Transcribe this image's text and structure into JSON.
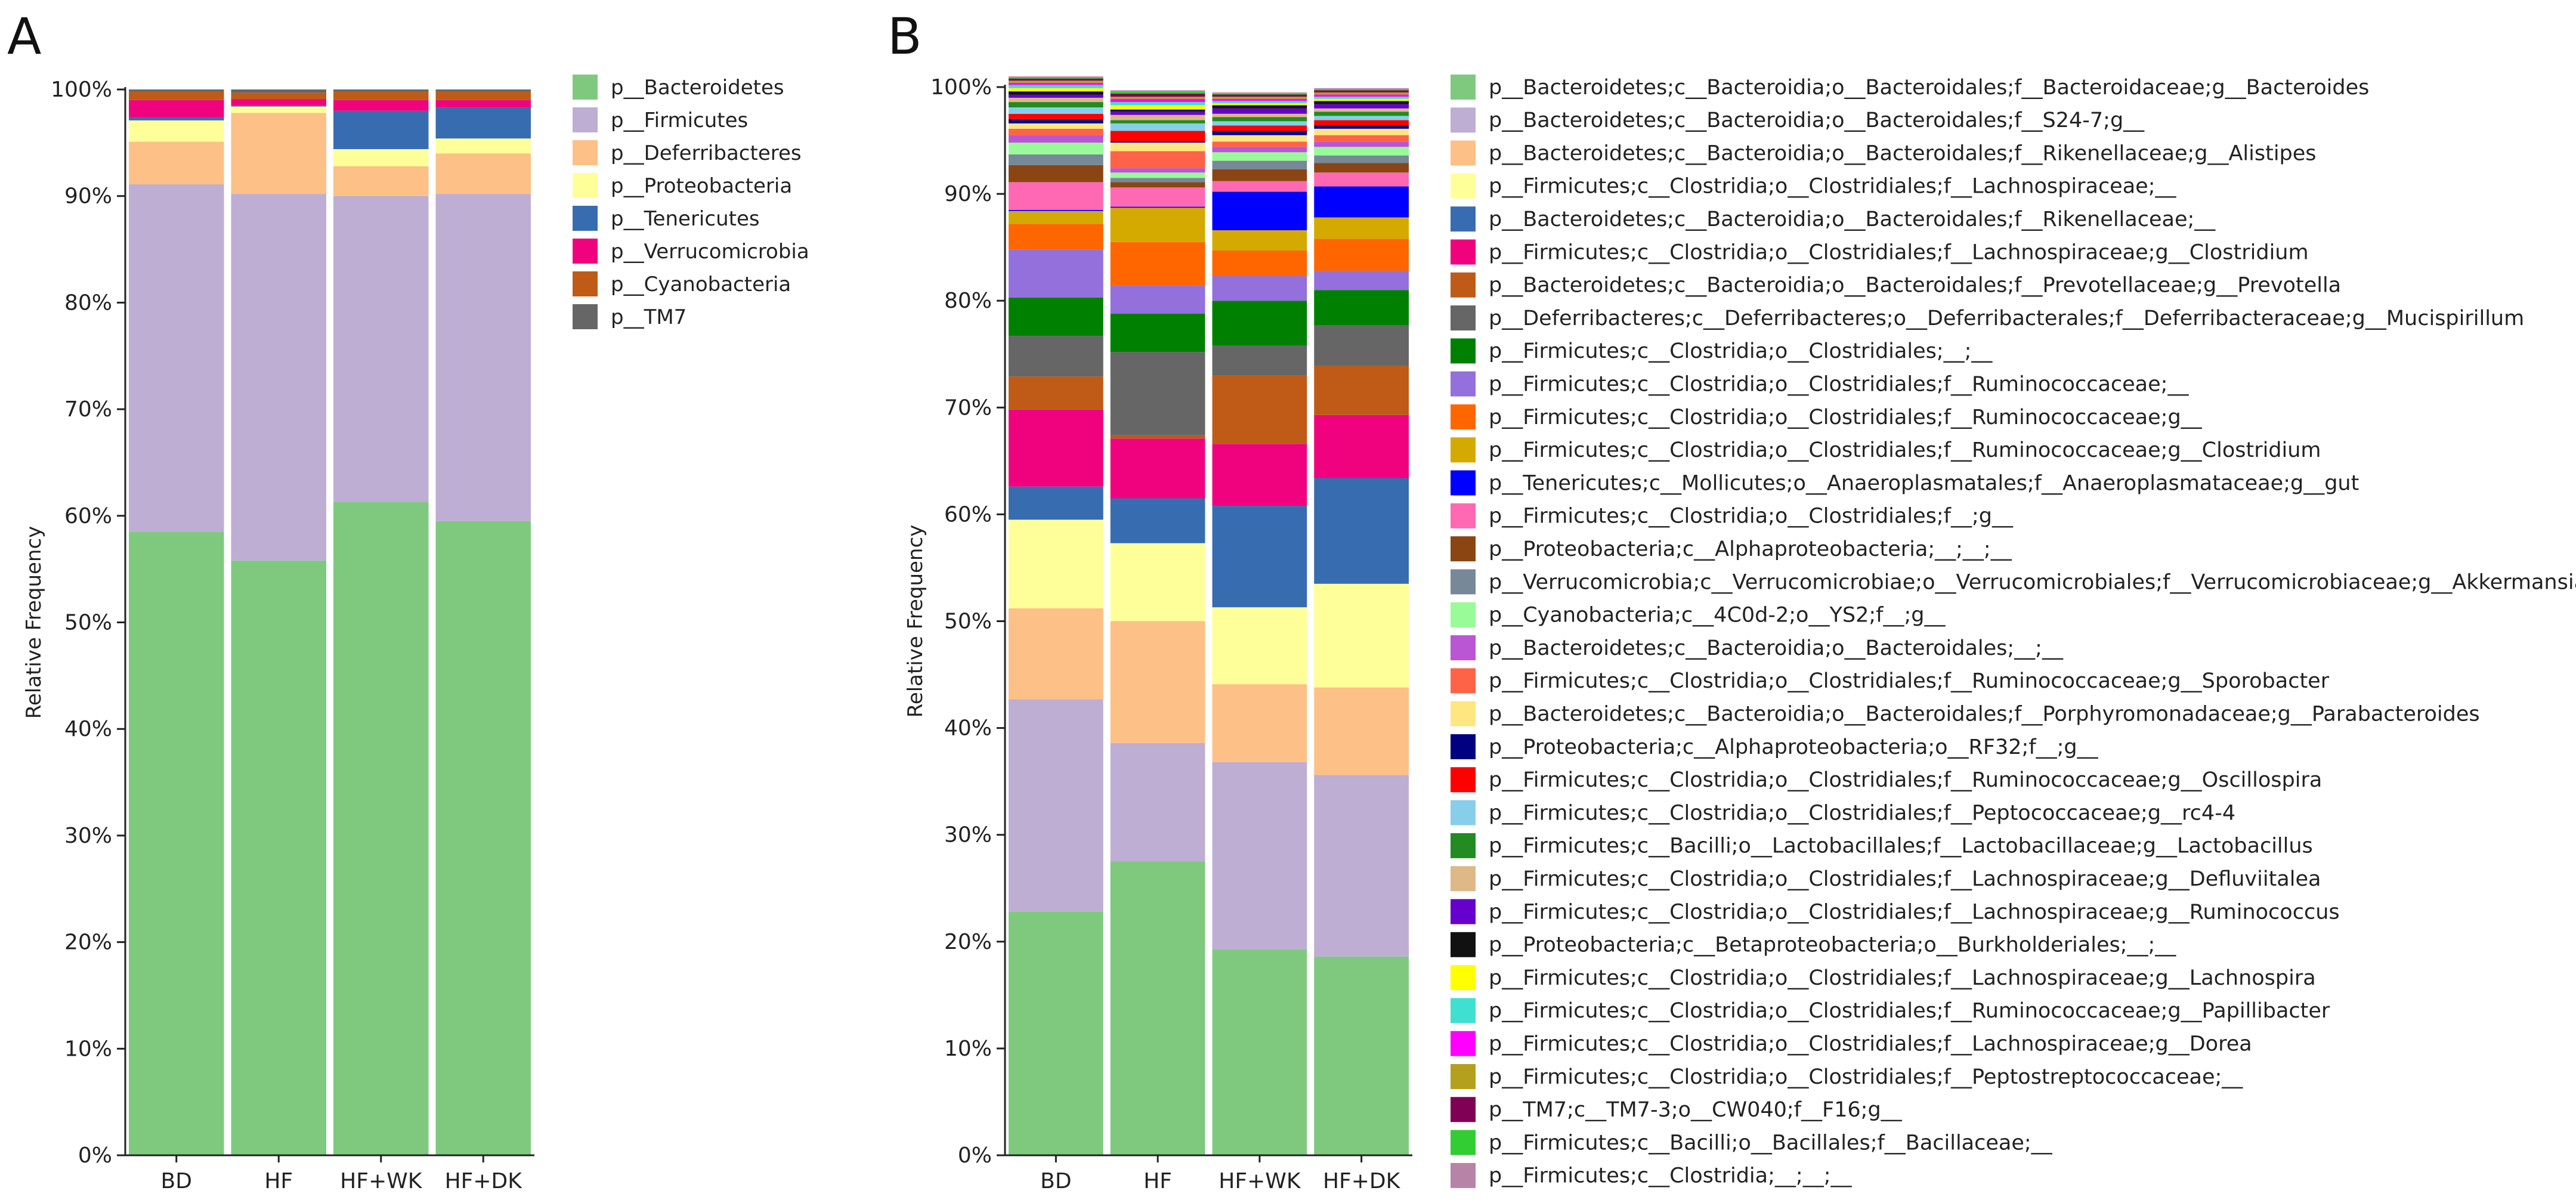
{
  "chart_data": [
    {
      "panel": "A",
      "type": "bar",
      "stacked": true,
      "ylabel": "Relative Frequency",
      "xlabel": "",
      "ylim": [
        0,
        100
      ],
      "y_ticks": [
        "0%",
        "10%",
        "20%",
        "30%",
        "40%",
        "50%",
        "60%",
        "70%",
        "80%",
        "90%",
        "100%"
      ],
      "categories": [
        "BD",
        "HF",
        "HF+WK",
        "HF+DK"
      ],
      "legend_position": "right",
      "series": [
        {
          "name": "p__Bacteroidetes",
          "color": "#7fc97f",
          "values": [
            58.5,
            55.8,
            61.3,
            59.5
          ]
        },
        {
          "name": "p__Firmicutes",
          "color": "#beaed4",
          "values": [
            32.6,
            34.4,
            28.7,
            30.7
          ]
        },
        {
          "name": "p__Deferribacteres",
          "color": "#fdc086",
          "values": [
            4.0,
            7.6,
            2.8,
            3.8
          ]
        },
        {
          "name": "p__Proteobacteria",
          "color": "#ffff99",
          "values": [
            2.0,
            0.6,
            1.6,
            1.4
          ]
        },
        {
          "name": "p__Tenericutes",
          "color": "#386cb0",
          "values": [
            0.3,
            0.1,
            3.6,
            2.9
          ]
        },
        {
          "name": "p__Verrucomicrobia",
          "color": "#f0027f",
          "values": [
            1.6,
            0.6,
            1.0,
            0.7
          ]
        },
        {
          "name": "p__Cyanobacteria",
          "color": "#bf5b17",
          "values": [
            0.8,
            0.6,
            0.8,
            0.8
          ]
        },
        {
          "name": "p__TM7",
          "color": "#666666",
          "values": [
            0.2,
            0.3,
            0.2,
            0.2
          ]
        }
      ]
    },
    {
      "panel": "B",
      "type": "bar",
      "stacked": true,
      "ylabel": "Relative Frequency",
      "xlabel": "",
      "ylim": [
        0,
        100
      ],
      "y_ticks": [
        "0%",
        "10%",
        "20%",
        "30%",
        "40%",
        "50%",
        "60%",
        "70%",
        "80%",
        "90%",
        "100%"
      ],
      "categories": [
        "BD",
        "HF",
        "HF+WK",
        "HF+DK"
      ],
      "legend_position": "right",
      "series": [
        {
          "name": "p__Bacteroidetes;c__Bacteroidia;o__Bacteroidales;f__Bacteroidaceae;g__Bacteroides",
          "color": "#7fc97f",
          "values": [
            22.8,
            27.5,
            19.3,
            18.6
          ]
        },
        {
          "name": "p__Bacteroidetes;c__Bacteroidia;o__Bacteroidales;f__S24-7;g__",
          "color": "#beaed4",
          "values": [
            19.9,
            11.1,
            17.5,
            17.0
          ]
        },
        {
          "name": "p__Bacteroidetes;c__Bacteroidia;o__Bacteroidales;f__Rikenellaceae;g__Alistipes",
          "color": "#fdc086",
          "values": [
            8.5,
            11.4,
            7.3,
            8.2
          ]
        },
        {
          "name": "p__Firmicutes;c__Clostridia;o__Clostridiales;f__Lachnospiraceae;__",
          "color": "#ffff99",
          "values": [
            8.3,
            7.3,
            7.2,
            9.7
          ]
        },
        {
          "name": "p__Bacteroidetes;c__Bacteroidia;o__Bacteroidales;f__Rikenellaceae;__",
          "color": "#386cb0",
          "values": [
            3.1,
            4.2,
            9.5,
            9.9
          ]
        },
        {
          "name": "p__Firmicutes;c__Clostridia;o__Clostridiales;f__Lachnospiraceae;g__Clostridium",
          "color": "#f0027f",
          "values": [
            7.2,
            5.6,
            5.8,
            5.9
          ]
        },
        {
          "name": "p__Bacteroidetes;c__Bacteroidia;o__Bacteroidales;f__Prevotellaceae;g__Prevotella",
          "color": "#bf5b17",
          "values": [
            3.1,
            0.3,
            6.4,
            4.6
          ]
        },
        {
          "name": "p__Deferribacteres;c__Deferribacteres;o__Deferribacterales;f__Deferribacteraceae;g__Mucispirillum",
          "color": "#666666",
          "values": [
            3.8,
            7.8,
            2.8,
            3.8
          ]
        },
        {
          "name": "p__Firmicutes;c__Clostridia;o__Clostridiales;__;__",
          "color": "#008000",
          "values": [
            3.6,
            3.6,
            4.2,
            3.3
          ]
        },
        {
          "name": "p__Firmicutes;c__Clostridia;o__Clostridiales;f__Ruminococcaceae;__",
          "color": "#9370db",
          "values": [
            4.5,
            2.6,
            2.3,
            1.8
          ]
        },
        {
          "name": "p__Firmicutes;c__Clostridia;o__Clostridiales;f__Ruminococcaceae;g__",
          "color": "#ff6600",
          "values": [
            2.4,
            4.1,
            2.4,
            3.0
          ]
        },
        {
          "name": "p__Firmicutes;c__Clostridia;o__Clostridiales;f__Ruminococcaceae;g__Clostridium",
          "color": "#d4aa00",
          "values": [
            1.2,
            3.2,
            1.9,
            2.0
          ]
        },
        {
          "name": "p__Tenericutes;c__Mollicutes;o__Anaeroplasmatales;f__Anaeroplasmataceae;g__gut",
          "color": "#0000ff",
          "values": [
            0.1,
            0.1,
            3.6,
            2.9
          ]
        },
        {
          "name": "p__Firmicutes;c__Clostridia;o__Clostridiales;f__;g__",
          "color": "#ff69b4",
          "values": [
            2.6,
            1.8,
            1.0,
            1.3
          ]
        },
        {
          "name": "p__Proteobacteria;c__Alphaproteobacteria;__;__;__",
          "color": "#8b4513",
          "values": [
            1.6,
            0.5,
            1.1,
            0.9
          ]
        },
        {
          "name": "p__Verrucomicrobia;c__Verrucomicrobiae;o__Verrucomicrobiales;f__Verrucomicrobiaceae;g__Akkermansia",
          "color": "#778899",
          "values": [
            1.0,
            0.4,
            0.8,
            0.7
          ]
        },
        {
          "name": "p__Cyanobacteria;c__4C0d-2;o__YS2;f__;g__",
          "color": "#98fb98",
          "values": [
            1.1,
            0.5,
            0.8,
            0.8
          ]
        },
        {
          "name": "p__Bacteroidetes;c__Bacteroidia;o__Bacteroidales;__;__",
          "color": "#ba55d3",
          "values": [
            0.7,
            0.4,
            0.5,
            0.5
          ]
        },
        {
          "name": "p__Firmicutes;c__Clostridia;o__Clostridiales;f__Ruminococcaceae;g__Sporobacter",
          "color": "#ff6347",
          "values": [
            0.6,
            1.6,
            0.5,
            0.6
          ]
        },
        {
          "name": "p__Bacteroidetes;c__Bacteroidia;o__Bacteroidales;f__Porphyromonadaceae;g__Parabacteroides",
          "color": "#ffe680",
          "values": [
            0.5,
            0.8,
            0.6,
            0.6
          ]
        },
        {
          "name": "p__Proteobacteria;c__Alphaproteobacteria;o__RF32;f__;g__",
          "color": "#000080",
          "values": [
            0.4,
            0.1,
            0.4,
            0.3
          ]
        },
        {
          "name": "p__Firmicutes;c__Clostridia;o__Clostridiales;f__Ruminococcaceae;g__Oscillospira",
          "color": "#ff0000",
          "values": [
            0.5,
            1.0,
            0.5,
            0.5
          ]
        },
        {
          "name": "p__Firmicutes;c__Clostridia;o__Clostridiales;f__Peptococcaceae;g__rc4-4",
          "color": "#87ceeb",
          "values": [
            0.6,
            0.7,
            0.4,
            0.4
          ]
        },
        {
          "name": "p__Firmicutes;c__Bacilli;o__Lactobacillales;f__Lactobacillaceae;g__Lactobacillus",
          "color": "#228b22",
          "values": [
            0.5,
            0.3,
            0.4,
            0.4
          ]
        },
        {
          "name": "p__Firmicutes;c__Clostridia;o__Clostridiales;f__Lachnospiraceae;g__Defluviitalea",
          "color": "#deb887",
          "values": [
            0.4,
            0.5,
            0.3,
            0.3
          ]
        },
        {
          "name": "p__Firmicutes;c__Clostridia;o__Clostridiales;f__Lachnospiraceae;g__Ruminococcus",
          "color": "#6600cc",
          "values": [
            0.3,
            0.3,
            0.5,
            0.4
          ]
        },
        {
          "name": "p__Proteobacteria;c__Betaproteobacteria;o__Burkholderiales;__;__",
          "color": "#111111",
          "values": [
            0.3,
            0.2,
            0.3,
            0.3
          ]
        },
        {
          "name": "p__Firmicutes;c__Clostridia;o__Clostridiales;f__Lachnospiraceae;g__Lachnospira",
          "color": "#ffff00",
          "values": [
            0.3,
            0.4,
            0.2,
            0.2
          ]
        },
        {
          "name": "p__Firmicutes;c__Clostridia;o__Clostridiales;f__Ruminococcaceae;g__Papillibacter",
          "color": "#40e0d0",
          "values": [
            0.3,
            0.3,
            0.2,
            0.2
          ]
        },
        {
          "name": "p__Firmicutes;c__Clostridia;o__Clostridiales;f__Lachnospiraceae;g__Dorea",
          "color": "#ff00ff",
          "values": [
            0.2,
            0.3,
            0.2,
            0.2
          ]
        },
        {
          "name": "p__Firmicutes;c__Clostridia;o__Clostridiales;f__Peptostreptococcaceae;__",
          "color": "#b5a01e",
          "values": [
            0.2,
            0.2,
            0.2,
            0.2
          ]
        },
        {
          "name": "p__TM7;c__TM7-3;o__CW040;f__F16;g__",
          "color": "#800055",
          "values": [
            0.2,
            0.3,
            0.2,
            0.2
          ]
        },
        {
          "name": "p__Firmicutes;c__Bacilli;o__Bacillales;f__Bacillaceae;__",
          "color": "#32cd32",
          "values": [
            0.1,
            0.2,
            0.1,
            0.1
          ]
        },
        {
          "name": "p__Firmicutes;c__Clostridia;__;__;__",
          "color": "#b784a7",
          "values": [
            0.1,
            0.1,
            0.1,
            0.1
          ]
        }
      ]
    }
  ]
}
